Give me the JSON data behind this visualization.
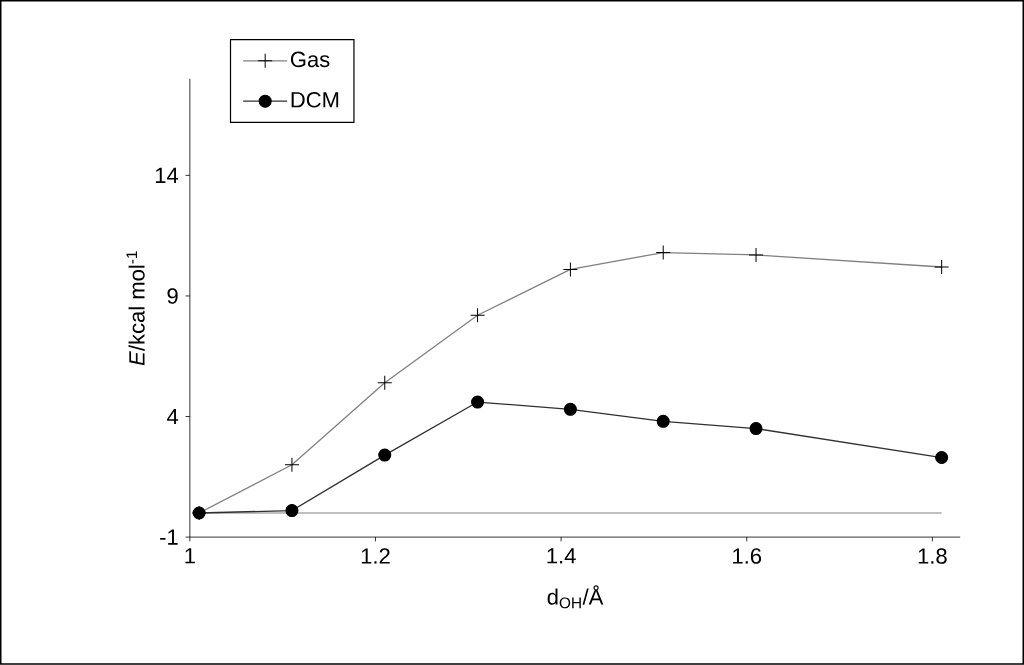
{
  "chart_data": {
    "type": "line",
    "xlabel": "d$_{OH}$/Å",
    "ylabel": "*E*/kcal mol$^{-1}$",
    "xlim": [
      1,
      1.83
    ],
    "ylim": [
      -1,
      18
    ],
    "xticks": [
      {
        "value": 1,
        "label": "1"
      },
      {
        "value": 1.2,
        "label": "1.2"
      },
      {
        "value": 1.4,
        "label": "1.4"
      },
      {
        "value": 1.6,
        "label": "1.6"
      },
      {
        "value": 1.8,
        "label": "1.8"
      }
    ],
    "yticks": [
      -1,
      4,
      9,
      14
    ],
    "grid": false,
    "legend": "top left",
    "x": [
      1.01,
      1.11,
      1.21,
      1.31,
      1.41,
      1.51,
      1.61,
      1.81
    ],
    "series": [
      {
        "name": "Gas",
        "color": "#808080",
        "marker": "cross",
        "values": [
          0,
          2,
          5.4,
          8.2,
          10.1,
          10.8,
          10.7,
          10.2
        ]
      },
      {
        "name": "DCM",
        "color": "#303030",
        "marker": "circle",
        "values": [
          0,
          0.1,
          2.4,
          4.6,
          4.3,
          3.8,
          3.5,
          2.3
        ]
      }
    ],
    "ref_lines": [
      {
        "axis": "y",
        "value": 0,
        "color": "#808080"
      }
    ]
  }
}
